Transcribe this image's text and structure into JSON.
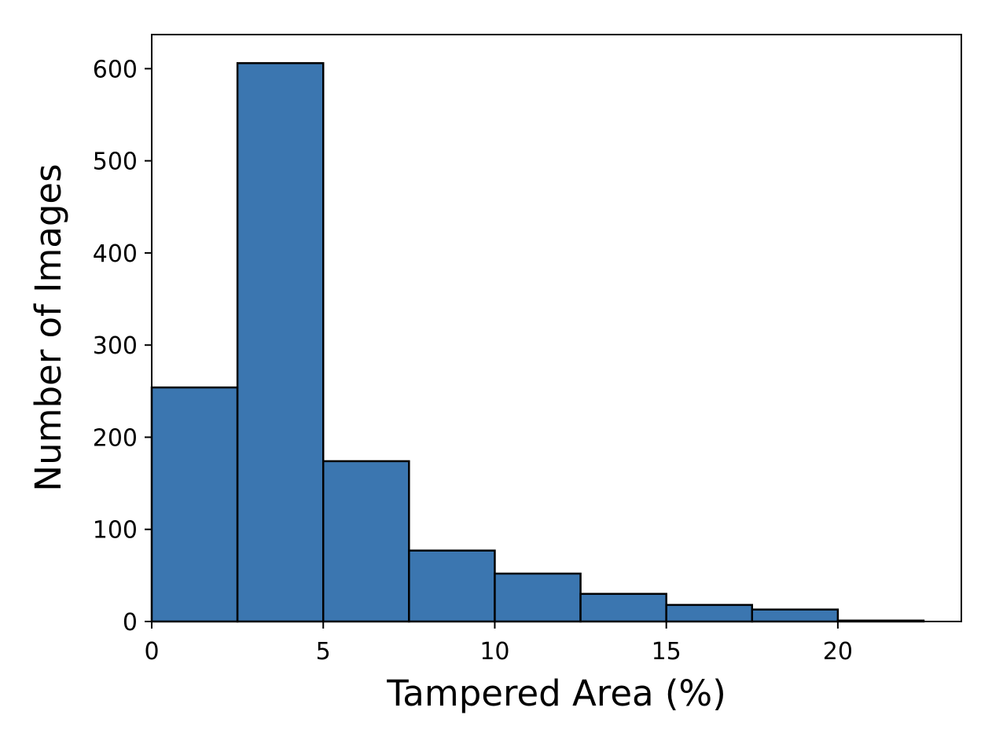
{
  "chart_data": {
    "type": "bar",
    "title": "",
    "xlabel": "Tampered Area (%)",
    "ylabel": "Number of Images",
    "bin_edges": [
      0,
      2.5,
      5,
      7.5,
      10,
      12.5,
      15,
      17.5,
      20,
      22.5
    ],
    "values": [
      254,
      606,
      174,
      77,
      52,
      30,
      18,
      13,
      1
    ],
    "xlim": [
      0,
      23.6
    ],
    "ylim": [
      0,
      637
    ],
    "x_ticks": [
      "0",
      "5",
      "10",
      "15",
      "20"
    ],
    "y_ticks": [
      "0",
      "100",
      "200",
      "300",
      "400",
      "500",
      "600"
    ],
    "grid": false,
    "bar_color": "#3b76b0",
    "edge_color": "#000000"
  }
}
